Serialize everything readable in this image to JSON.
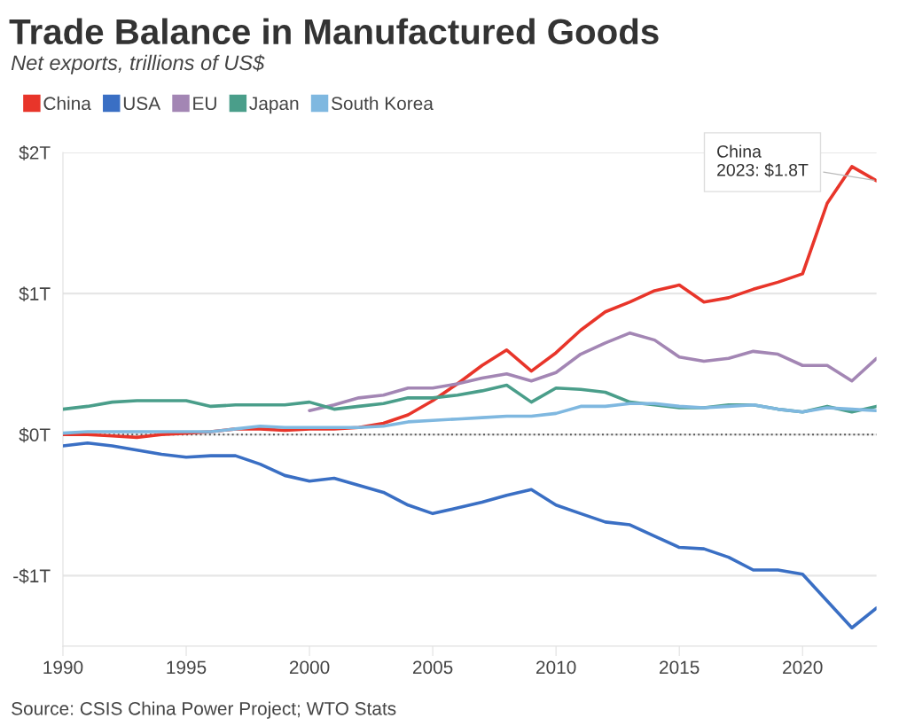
{
  "chart_data": {
    "type": "line",
    "title": "Trade Balance in Manufactured Goods",
    "subtitle": "Net exports, trillions of US$",
    "x": [
      1990,
      1991,
      1992,
      1993,
      1994,
      1995,
      1996,
      1997,
      1998,
      1999,
      2000,
      2001,
      2002,
      2003,
      2004,
      2005,
      2006,
      2007,
      2008,
      2009,
      2010,
      2011,
      2012,
      2013,
      2014,
      2015,
      2016,
      2017,
      2018,
      2019,
      2020,
      2021,
      2022,
      2023
    ],
    "series": [
      {
        "name": "China",
        "color": "#e8352a",
        "values": [
          0,
          0,
          -0.01,
          -0.02,
          0,
          0.01,
          0.02,
          0.04,
          0.04,
          0.03,
          0.04,
          0.04,
          0.05,
          0.08,
          0.14,
          0.24,
          0.36,
          0.49,
          0.6,
          0.45,
          0.58,
          0.74,
          0.87,
          0.94,
          1.02,
          1.06,
          0.94,
          0.97,
          1.03,
          1.08,
          1.14,
          1.64,
          1.9,
          1.8
        ]
      },
      {
        "name": "USA",
        "color": "#3a6fc4",
        "values": [
          -0.08,
          -0.06,
          -0.08,
          -0.11,
          -0.14,
          -0.16,
          -0.15,
          -0.15,
          -0.21,
          -0.29,
          -0.33,
          -0.31,
          -0.36,
          -0.41,
          -0.5,
          -0.56,
          -0.52,
          -0.48,
          -0.43,
          -0.39,
          -0.5,
          -0.56,
          -0.62,
          -0.64,
          -0.72,
          -0.8,
          -0.81,
          -0.87,
          -0.96,
          -0.96,
          -0.99,
          -1.18,
          -1.37,
          -1.23
        ]
      },
      {
        "name": "EU",
        "color": "#a386b4",
        "values": [
          null,
          null,
          null,
          null,
          null,
          null,
          null,
          null,
          null,
          null,
          0.17,
          0.21,
          0.26,
          0.28,
          0.33,
          0.33,
          0.36,
          0.4,
          0.43,
          0.38,
          0.44,
          0.57,
          0.65,
          0.72,
          0.67,
          0.55,
          0.52,
          0.54,
          0.59,
          0.57,
          0.49,
          0.49,
          0.38,
          0.54
        ]
      },
      {
        "name": "Japan",
        "color": "#4a9e8a",
        "values": [
          0.18,
          0.2,
          0.23,
          0.24,
          0.24,
          0.24,
          0.2,
          0.21,
          0.21,
          0.21,
          0.23,
          0.18,
          0.2,
          0.22,
          0.26,
          0.26,
          0.28,
          0.31,
          0.35,
          0.23,
          0.33,
          0.32,
          0.3,
          0.23,
          0.21,
          0.19,
          0.19,
          0.21,
          0.21,
          0.18,
          0.16,
          0.2,
          0.16,
          0.2
        ]
      },
      {
        "name": "South Korea",
        "color": "#7fb8e0",
        "values": [
          0.01,
          0.02,
          0.02,
          0.02,
          0.02,
          0.02,
          0.02,
          0.04,
          0.06,
          0.05,
          0.05,
          0.05,
          0.05,
          0.06,
          0.09,
          0.1,
          0.11,
          0.12,
          0.13,
          0.13,
          0.15,
          0.2,
          0.2,
          0.22,
          0.22,
          0.2,
          0.19,
          0.2,
          0.21,
          0.18,
          0.16,
          0.19,
          0.18,
          0.17
        ]
      }
    ],
    "xlim": [
      1990,
      2023
    ],
    "xticks": [
      1990,
      1995,
      2000,
      2005,
      2010,
      2015,
      2020
    ],
    "ylim": [
      -1.5,
      2
    ],
    "yticks": [
      {
        "value": -1,
        "label": "-$1T"
      },
      {
        "value": 0,
        "label": "$0T"
      },
      {
        "value": 1,
        "label": "$1T"
      },
      {
        "value": 2,
        "label": "$2T"
      }
    ],
    "grid": "y",
    "legend": "top left",
    "marker": "none",
    "line_style": "solid",
    "ref_lines": [
      {
        "axis": "y",
        "value": 0,
        "color": "#555555",
        "line_style": "dotted"
      }
    ],
    "annotations": [
      {
        "text": "China\n2023: $1.8T",
        "x": 2023,
        "y": 1.8
      },
      "Source: CSIS China Power Project; WTO Stats"
    ]
  }
}
